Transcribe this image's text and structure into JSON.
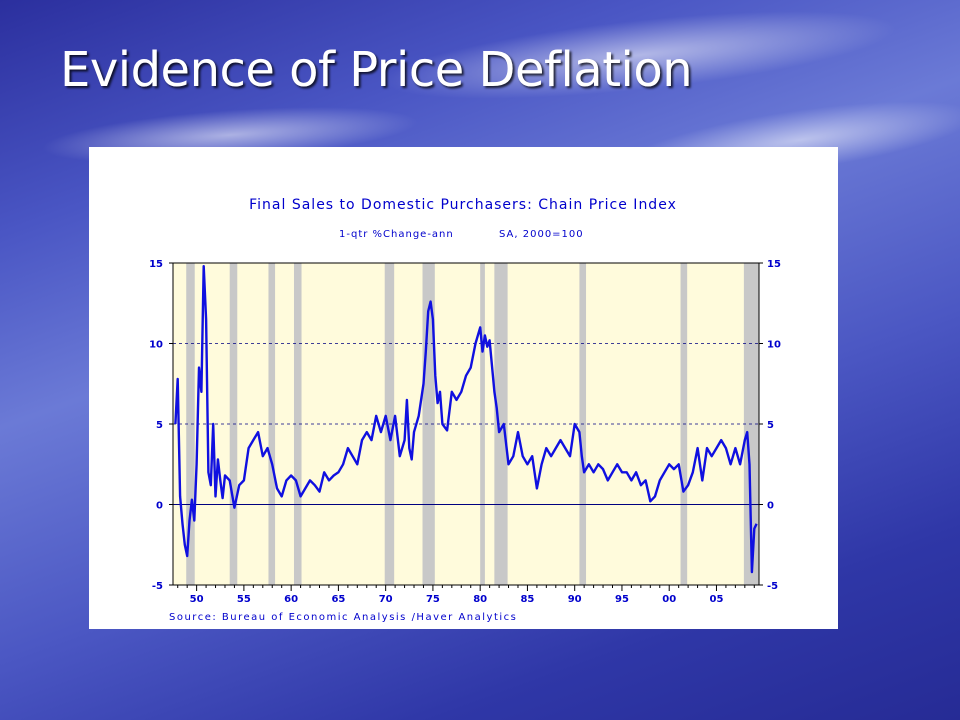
{
  "slide": {
    "title": "Evidence of Price Deflation"
  },
  "colors": {
    "series_line": "#1010e0",
    "plot_background": "#fffbdc",
    "recession_band": "#c8c8c8",
    "text": "#0000cc"
  },
  "chart_data": {
    "type": "line",
    "title": "Final Sales to Domestic Purchasers: Chain Price Index",
    "subtitle_left": "1-qtr %Change-ann",
    "subtitle_right": "SA, 2000=100",
    "source": "Source:  Bureau of Economic Analysis /Haver Analytics",
    "x_range": [
      1947.5,
      2009.5
    ],
    "ylim": [
      -5,
      15
    ],
    "y_ticks": [
      -5,
      0,
      5,
      10,
      15
    ],
    "y_tick_labels_left": [
      "-5",
      "0",
      "5",
      "10",
      "15"
    ],
    "y_tick_labels_right": [
      "-5",
      "0",
      "5",
      "10",
      "15"
    ],
    "x_tick_values": [
      1950,
      1955,
      1960,
      1965,
      1970,
      1975,
      1980,
      1985,
      1990,
      1995,
      2000,
      2005
    ],
    "x_tick_labels": [
      "50",
      "55",
      "60",
      "65",
      "70",
      "75",
      "80",
      "85",
      "90",
      "95",
      "00",
      "05"
    ],
    "grid": "horizontal dashed at 5 and 10",
    "recessions": [
      [
        1948.9,
        1949.8
      ],
      [
        1953.5,
        1954.3
      ],
      [
        1957.6,
        1958.3
      ],
      [
        1960.3,
        1961.1
      ],
      [
        1969.9,
        1970.9
      ],
      [
        1973.9,
        1975.2
      ],
      [
        1980.0,
        1980.5
      ],
      [
        1981.5,
        1982.9
      ],
      [
        1990.5,
        1991.2
      ],
      [
        2001.2,
        2001.9
      ],
      [
        2007.9,
        2009.5
      ]
    ],
    "series": [
      {
        "values": [
          [
            1947.75,
            5.0
          ],
          [
            1948.0,
            7.8
          ],
          [
            1948.25,
            0.5
          ],
          [
            1948.5,
            -1.2
          ],
          [
            1948.75,
            -2.5
          ],
          [
            1949.0,
            -3.2
          ],
          [
            1949.25,
            -1.0
          ],
          [
            1949.5,
            0.3
          ],
          [
            1949.75,
            -1.0
          ],
          [
            1950.0,
            2.5
          ],
          [
            1950.25,
            8.5
          ],
          [
            1950.5,
            7.0
          ],
          [
            1950.75,
            14.8
          ],
          [
            1951.0,
            11.5
          ],
          [
            1951.25,
            2.0
          ],
          [
            1951.5,
            1.2
          ],
          [
            1951.75,
            5.0
          ],
          [
            1952.0,
            0.5
          ],
          [
            1952.25,
            2.8
          ],
          [
            1952.5,
            1.5
          ],
          [
            1952.75,
            0.4
          ],
          [
            1953.0,
            1.8
          ],
          [
            1953.5,
            1.5
          ],
          [
            1954.0,
            -0.2
          ],
          [
            1954.5,
            1.2
          ],
          [
            1955.0,
            1.5
          ],
          [
            1955.5,
            3.5
          ],
          [
            1956.0,
            4.0
          ],
          [
            1956.5,
            4.5
          ],
          [
            1957.0,
            3.0
          ],
          [
            1957.5,
            3.5
          ],
          [
            1958.0,
            2.5
          ],
          [
            1958.5,
            1.0
          ],
          [
            1959.0,
            0.5
          ],
          [
            1959.5,
            1.5
          ],
          [
            1960.0,
            1.8
          ],
          [
            1960.5,
            1.5
          ],
          [
            1961.0,
            0.5
          ],
          [
            1961.5,
            1.0
          ],
          [
            1962.0,
            1.5
          ],
          [
            1962.5,
            1.2
          ],
          [
            1963.0,
            0.8
          ],
          [
            1963.5,
            2.0
          ],
          [
            1964.0,
            1.5
          ],
          [
            1964.5,
            1.8
          ],
          [
            1965.0,
            2.0
          ],
          [
            1965.5,
            2.5
          ],
          [
            1966.0,
            3.5
          ],
          [
            1966.5,
            3.0
          ],
          [
            1967.0,
            2.5
          ],
          [
            1967.5,
            4.0
          ],
          [
            1968.0,
            4.5
          ],
          [
            1968.5,
            4.0
          ],
          [
            1969.0,
            5.5
          ],
          [
            1969.5,
            4.5
          ],
          [
            1970.0,
            5.5
          ],
          [
            1970.5,
            4.0
          ],
          [
            1971.0,
            5.5
          ],
          [
            1971.5,
            3.0
          ],
          [
            1972.0,
            4.0
          ],
          [
            1972.25,
            6.5
          ],
          [
            1972.5,
            3.5
          ],
          [
            1972.75,
            2.8
          ],
          [
            1973.0,
            4.5
          ],
          [
            1973.5,
            5.5
          ],
          [
            1974.0,
            7.5
          ],
          [
            1974.25,
            9.5
          ],
          [
            1974.5,
            12.0
          ],
          [
            1974.75,
            12.6
          ],
          [
            1975.0,
            11.5
          ],
          [
            1975.25,
            8.0
          ],
          [
            1975.5,
            6.3
          ],
          [
            1975.75,
            7.0
          ],
          [
            1976.0,
            5.0
          ],
          [
            1976.5,
            4.6
          ],
          [
            1977.0,
            7.0
          ],
          [
            1977.5,
            6.5
          ],
          [
            1978.0,
            7.0
          ],
          [
            1978.5,
            8.0
          ],
          [
            1979.0,
            8.5
          ],
          [
            1979.5,
            10.0
          ],
          [
            1980.0,
            11.0
          ],
          [
            1980.25,
            9.5
          ],
          [
            1980.5,
            10.5
          ],
          [
            1980.75,
            9.8
          ],
          [
            1981.0,
            10.2
          ],
          [
            1981.5,
            7.0
          ],
          [
            1981.75,
            6.0
          ],
          [
            1982.0,
            4.5
          ],
          [
            1982.5,
            5.0
          ],
          [
            1983.0,
            2.5
          ],
          [
            1983.5,
            3.0
          ],
          [
            1984.0,
            4.5
          ],
          [
            1984.5,
            3.0
          ],
          [
            1985.0,
            2.5
          ],
          [
            1985.5,
            3.0
          ],
          [
            1986.0,
            1.0
          ],
          [
            1986.5,
            2.5
          ],
          [
            1987.0,
            3.5
          ],
          [
            1987.5,
            3.0
          ],
          [
            1988.0,
            3.5
          ],
          [
            1988.5,
            4.0
          ],
          [
            1989.0,
            3.5
          ],
          [
            1989.5,
            3.0
          ],
          [
            1990.0,
            5.0
          ],
          [
            1990.5,
            4.5
          ],
          [
            1990.75,
            3.0
          ],
          [
            1991.0,
            2.0
          ],
          [
            1991.5,
            2.5
          ],
          [
            1992.0,
            2.0
          ],
          [
            1992.5,
            2.5
          ],
          [
            1993.0,
            2.2
          ],
          [
            1993.5,
            1.5
          ],
          [
            1994.0,
            2.0
          ],
          [
            1994.5,
            2.5
          ],
          [
            1995.0,
            2.0
          ],
          [
            1995.5,
            2.0
          ],
          [
            1996.0,
            1.5
          ],
          [
            1996.5,
            2.0
          ],
          [
            1997.0,
            1.2
          ],
          [
            1997.5,
            1.5
          ],
          [
            1998.0,
            0.2
          ],
          [
            1998.5,
            0.5
          ],
          [
            1999.0,
            1.5
          ],
          [
            1999.5,
            2.0
          ],
          [
            2000.0,
            2.5
          ],
          [
            2000.5,
            2.2
          ],
          [
            2001.0,
            2.5
          ],
          [
            2001.5,
            0.8
          ],
          [
            2002.0,
            1.2
          ],
          [
            2002.5,
            2.0
          ],
          [
            2003.0,
            3.5
          ],
          [
            2003.5,
            1.5
          ],
          [
            2004.0,
            3.5
          ],
          [
            2004.5,
            3.0
          ],
          [
            2005.0,
            3.5
          ],
          [
            2005.5,
            4.0
          ],
          [
            2006.0,
            3.5
          ],
          [
            2006.5,
            2.5
          ],
          [
            2007.0,
            3.5
          ],
          [
            2007.5,
            2.5
          ],
          [
            2008.0,
            4.0
          ],
          [
            2008.25,
            4.5
          ],
          [
            2008.5,
            2.5
          ],
          [
            2008.75,
            -4.2
          ],
          [
            2009.0,
            -1.5
          ],
          [
            2009.25,
            -1.2
          ]
        ]
      }
    ]
  }
}
